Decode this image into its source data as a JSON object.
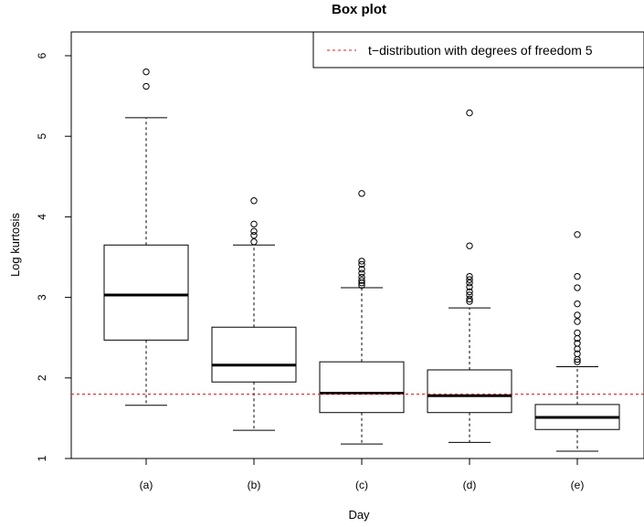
{
  "chart_data": {
    "type": "box",
    "title": "Box plot",
    "xlabel": "Day",
    "ylabel": "Log kurtosis",
    "categories": [
      "(a)",
      "(b)",
      "(c)",
      "(d)",
      "(e)"
    ],
    "ylim": [
      1,
      6.3
    ],
    "yticks": [
      1,
      2,
      3,
      4,
      5,
      6
    ],
    "boxes": [
      {
        "label": "(a)",
        "whisker_low": 1.66,
        "q1": 2.47,
        "median": 3.03,
        "q3": 3.65,
        "whisker_high": 5.23,
        "outliers": [
          5.62,
          5.8
        ]
      },
      {
        "label": "(b)",
        "whisker_low": 1.35,
        "q1": 1.95,
        "median": 2.16,
        "q3": 2.63,
        "whisker_high": 3.65,
        "outliers": [
          3.69,
          3.77,
          3.82,
          3.91,
          4.2
        ]
      },
      {
        "label": "(c)",
        "whisker_low": 1.18,
        "q1": 1.57,
        "median": 1.81,
        "q3": 2.2,
        "whisker_high": 3.12,
        "outliers": [
          3.15,
          3.18,
          3.21,
          3.25,
          3.3,
          3.35,
          3.41,
          3.45,
          4.29
        ]
      },
      {
        "label": "(d)",
        "whisker_low": 1.2,
        "q1": 1.57,
        "median": 1.78,
        "q3": 2.1,
        "whisker_high": 2.87,
        "outliers": [
          2.95,
          2.98,
          3.03,
          3.07,
          3.13,
          3.18,
          3.22,
          3.26,
          3.64,
          5.29
        ]
      },
      {
        "label": "(e)",
        "whisker_low": 1.09,
        "q1": 1.36,
        "median": 1.51,
        "q3": 1.67,
        "whisker_high": 2.14,
        "outliers": [
          2.2,
          2.23,
          2.3,
          2.36,
          2.43,
          2.49,
          2.56,
          2.7,
          2.78,
          2.92,
          3.12,
          3.26,
          3.78
        ]
      }
    ],
    "reference_line": {
      "y": 1.8,
      "label": "t−distribution with degrees of freedom 5",
      "color": "#e41a1c",
      "style": "dashed"
    },
    "legend_position": "top-right",
    "grid": false
  }
}
